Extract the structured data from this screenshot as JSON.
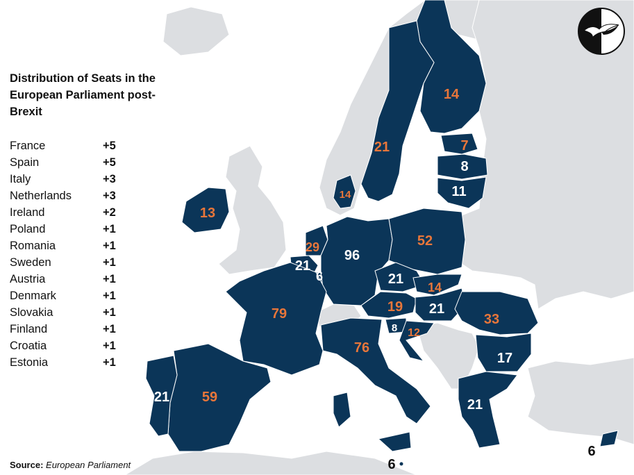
{
  "title": "Distribution of Seats in the European Parliament post-Brexit",
  "seat_changes": [
    {
      "country": "France",
      "change": "+5"
    },
    {
      "country": "Spain",
      "change": "+5"
    },
    {
      "country": "Italy",
      "change": "+3"
    },
    {
      "country": "Netherlands",
      "change": "+3"
    },
    {
      "country": "Ireland",
      "change": "+2"
    },
    {
      "country": "Poland",
      "change": "+1"
    },
    {
      "country": "Romania",
      "change": "+1"
    },
    {
      "country": "Sweden",
      "change": "+1"
    },
    {
      "country": "Austria",
      "change": "+1"
    },
    {
      "country": "Denmark",
      "change": "+1"
    },
    {
      "country": "Slovakia",
      "change": "+1"
    },
    {
      "country": "Finland",
      "change": "+1"
    },
    {
      "country": "Croatia",
      "change": "+1"
    },
    {
      "country": "Estonia",
      "change": "+1"
    }
  ],
  "source": {
    "label": "Source:",
    "value": "European Parliament"
  },
  "map_seats": [
    {
      "country": "Finland",
      "seats": "14",
      "changed": true
    },
    {
      "country": "Sweden",
      "seats": "21",
      "changed": true
    },
    {
      "country": "Estonia",
      "seats": "7",
      "changed": true
    },
    {
      "country": "Latvia",
      "seats": "8",
      "changed": false
    },
    {
      "country": "Lithuania",
      "seats": "11",
      "changed": false
    },
    {
      "country": "Denmark",
      "seats": "14",
      "changed": true
    },
    {
      "country": "Ireland",
      "seats": "13",
      "changed": true
    },
    {
      "country": "Netherlands",
      "seats": "29",
      "changed": true
    },
    {
      "country": "Belgium",
      "seats": "21",
      "changed": false
    },
    {
      "country": "Luxembourg",
      "seats": "6",
      "changed": false
    },
    {
      "country": "Germany",
      "seats": "96",
      "changed": false
    },
    {
      "country": "Poland",
      "seats": "52",
      "changed": true
    },
    {
      "country": "Czechia",
      "seats": "21",
      "changed": false
    },
    {
      "country": "Slovakia",
      "seats": "14",
      "changed": true
    },
    {
      "country": "Austria",
      "seats": "19",
      "changed": true
    },
    {
      "country": "Hungary",
      "seats": "21",
      "changed": false
    },
    {
      "country": "Slovenia",
      "seats": "8",
      "changed": false
    },
    {
      "country": "Croatia",
      "seats": "12",
      "changed": true
    },
    {
      "country": "Romania",
      "seats": "33",
      "changed": true
    },
    {
      "country": "Bulgaria",
      "seats": "17",
      "changed": false
    },
    {
      "country": "France",
      "seats": "79",
      "changed": true
    },
    {
      "country": "Italy",
      "seats": "76",
      "changed": true
    },
    {
      "country": "Spain",
      "seats": "59",
      "changed": true
    },
    {
      "country": "Portugal",
      "seats": "21",
      "changed": false
    },
    {
      "country": "Greece",
      "seats": "21",
      "changed": false
    },
    {
      "country": "Malta",
      "seats": "6",
      "changed": false
    },
    {
      "country": "Cyprus",
      "seats": "6",
      "changed": false
    }
  ],
  "colors": {
    "eu_member": "#0b3558",
    "non_member": "#dcdee1",
    "sea": "#ffffff",
    "changed_label": "#e8763a",
    "unchanged_label": "#ffffff",
    "outside_label": "#111111"
  }
}
